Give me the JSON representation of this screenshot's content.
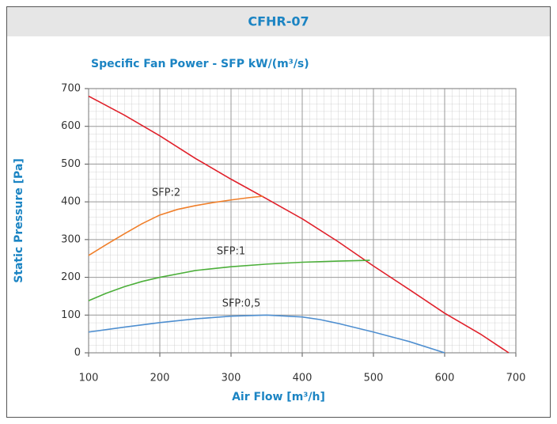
{
  "chart_data": {
    "type": "line",
    "title": "CFHR-07",
    "subtitle": "Specific Fan Power - SFP kW/(m³/s)",
    "xlabel": "Air Flow [m³/h]",
    "ylabel": "Static Pressure [Pa]",
    "xlim": [
      100,
      700
    ],
    "ylim": [
      0,
      700
    ],
    "xticks": [
      100,
      200,
      300,
      400,
      500,
      600,
      700
    ],
    "yticks": [
      0,
      100,
      200,
      300,
      400,
      500,
      600,
      700
    ],
    "grid": true,
    "series": [
      {
        "color": "#e0202a",
        "x": [
          100,
          150,
          200,
          250,
          300,
          350,
          400,
          450,
          500,
          550,
          600,
          650,
          690
        ],
        "values": [
          680,
          630,
          575,
          515,
          460,
          408,
          355,
          295,
          230,
          168,
          105,
          50,
          0
        ]
      },
      {
        "name": "SFP:2",
        "color": "#f07f2a",
        "x": [
          100,
          125,
          150,
          175,
          200,
          225,
          250,
          275,
          300,
          325,
          345
        ],
        "values": [
          258,
          287,
          315,
          342,
          365,
          380,
          390,
          398,
          405,
          411,
          415
        ]
      },
      {
        "name": "SFP:1",
        "color": "#4caf3a",
        "x": [
          100,
          125,
          150,
          175,
          200,
          250,
          300,
          350,
          400,
          450,
          495
        ],
        "values": [
          138,
          158,
          175,
          189,
          200,
          218,
          228,
          235,
          240,
          243,
          245
        ]
      },
      {
        "name": "SFP:0,5",
        "color": "#4f8fd0",
        "x": [
          100,
          150,
          200,
          250,
          300,
          350,
          400,
          425,
          450,
          500,
          550,
          600
        ],
        "values": [
          55,
          68,
          80,
          90,
          97,
          100,
          95,
          88,
          78,
          55,
          30,
          0
        ]
      }
    ]
  }
}
